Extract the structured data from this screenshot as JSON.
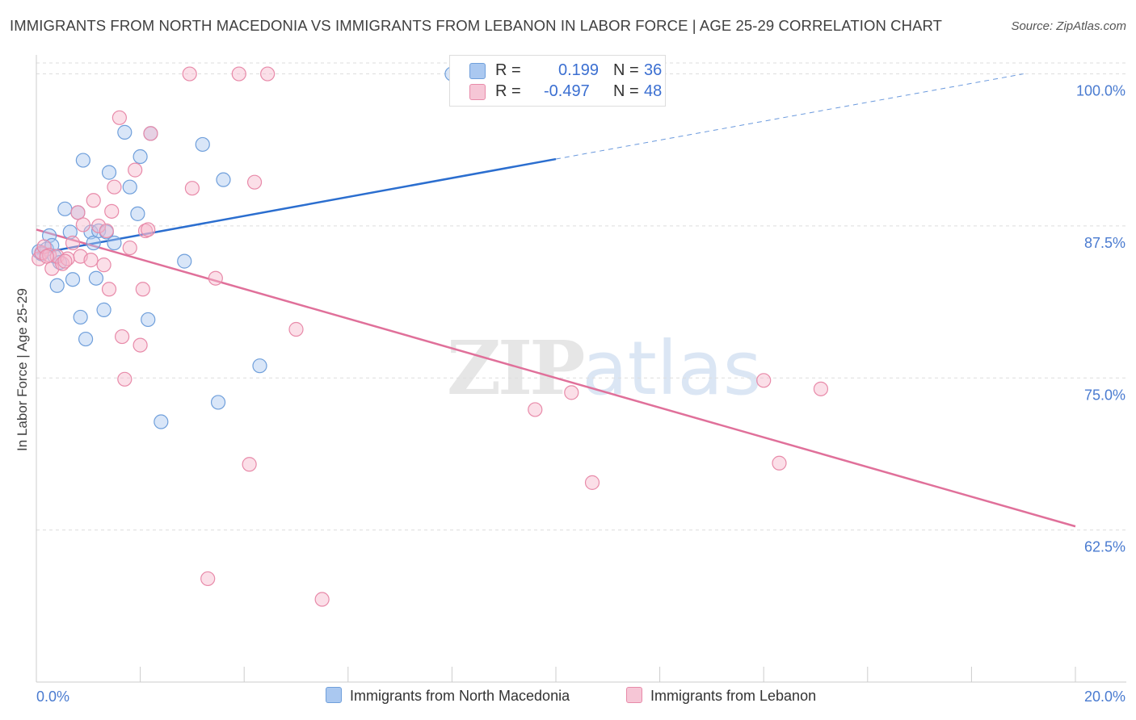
{
  "title": "IMMIGRANTS FROM NORTH MACEDONIA VS IMMIGRANTS FROM LEBANON IN LABOR FORCE | AGE 25-29 CORRELATION CHART",
  "source": "Source: ZipAtlas.com",
  "watermark": {
    "part1": "ZIP",
    "part2": "atlas"
  },
  "legend_top": {
    "rows": [
      {
        "r_label": "R =",
        "r_value": "0.199",
        "n_label": "N =",
        "n_value": "36"
      },
      {
        "r_label": "R =",
        "r_value": "-0.497",
        "n_label": "N =",
        "n_value": "48"
      }
    ]
  },
  "colors": {
    "blue_fill": "#aac8f0",
    "blue_stroke": "#6f9fdb",
    "blue_line": "#2b6ecf",
    "pink_fill": "#f6b8cc",
    "pink_stroke": "#e88aa9",
    "pink_line": "#e0709a",
    "grid": "#dddddd",
    "tick_text": "#4a7bd0"
  },
  "chart_data": {
    "type": "scatter",
    "title": "IMMIGRANTS FROM NORTH MACEDONIA VS IMMIGRANTS FROM LEBANON IN LABOR FORCE | AGE 25-29 CORRELATION CHART",
    "xlabel": "",
    "ylabel": "In Labor Force | Age 25-29",
    "xlim": [
      0,
      20
    ],
    "ylim": [
      50,
      100.9
    ],
    "x_tick_labels": [
      "0.0%",
      "20.0%"
    ],
    "y_ticks": [
      62.5,
      75.0,
      87.5,
      100.0
    ],
    "y_tick_labels": [
      "62.5%",
      "75.0%",
      "87.5%",
      "100.0%"
    ],
    "grid": true,
    "legend_placement": "bottom",
    "series": [
      {
        "name": "Immigrants from North Macedonia",
        "color": "blue",
        "points": [
          [
            0.05,
            85.4
          ],
          [
            0.2,
            85.6
          ],
          [
            0.25,
            86.7
          ],
          [
            0.3,
            85.9
          ],
          [
            0.35,
            85.0
          ],
          [
            0.4,
            82.6
          ],
          [
            0.45,
            84.5
          ],
          [
            0.55,
            88.9
          ],
          [
            0.65,
            87.0
          ],
          [
            0.7,
            83.1
          ],
          [
            0.8,
            88.6
          ],
          [
            0.85,
            80.0
          ],
          [
            0.9,
            92.9
          ],
          [
            0.95,
            78.2
          ],
          [
            1.05,
            87.0
          ],
          [
            1.1,
            86.1
          ],
          [
            1.15,
            83.2
          ],
          [
            1.2,
            87.1
          ],
          [
            1.3,
            80.6
          ],
          [
            1.35,
            87.0
          ],
          [
            1.4,
            91.9
          ],
          [
            1.5,
            86.1
          ],
          [
            1.7,
            95.2
          ],
          [
            1.8,
            90.7
          ],
          [
            1.95,
            88.5
          ],
          [
            2.0,
            93.2
          ],
          [
            2.15,
            79.8
          ],
          [
            2.2,
            95.1
          ],
          [
            2.4,
            71.4
          ],
          [
            2.85,
            84.6
          ],
          [
            3.2,
            94.2
          ],
          [
            3.5,
            73.0
          ],
          [
            3.6,
            91.3
          ],
          [
            4.3,
            76.0
          ],
          [
            8.0,
            100.0
          ],
          [
            0.1,
            85.2
          ]
        ]
      },
      {
        "name": "Immigrants from Lebanon",
        "color": "pink",
        "points": [
          [
            0.05,
            84.8
          ],
          [
            0.1,
            85.3
          ],
          [
            0.15,
            85.8
          ],
          [
            0.25,
            85.1
          ],
          [
            0.3,
            84.0
          ],
          [
            0.4,
            85.0
          ],
          [
            0.5,
            84.4
          ],
          [
            0.6,
            84.8
          ],
          [
            0.7,
            86.1
          ],
          [
            0.8,
            88.6
          ],
          [
            0.85,
            85.0
          ],
          [
            0.9,
            87.6
          ],
          [
            1.05,
            84.7
          ],
          [
            1.1,
            89.6
          ],
          [
            1.2,
            87.5
          ],
          [
            1.3,
            84.3
          ],
          [
            1.35,
            87.1
          ],
          [
            1.4,
            82.3
          ],
          [
            1.45,
            88.7
          ],
          [
            1.5,
            90.7
          ],
          [
            1.6,
            96.4
          ],
          [
            1.65,
            78.4
          ],
          [
            1.7,
            74.9
          ],
          [
            1.8,
            85.7
          ],
          [
            1.9,
            92.1
          ],
          [
            2.0,
            77.7
          ],
          [
            2.05,
            82.3
          ],
          [
            2.1,
            87.1
          ],
          [
            2.15,
            87.2
          ],
          [
            2.2,
            95.1
          ],
          [
            2.95,
            100.0
          ],
          [
            3.0,
            90.6
          ],
          [
            3.3,
            58.5
          ],
          [
            3.45,
            83.2
          ],
          [
            3.9,
            100.0
          ],
          [
            4.1,
            67.9
          ],
          [
            4.2,
            91.1
          ],
          [
            4.45,
            100.0
          ],
          [
            5.0,
            79.0
          ],
          [
            5.5,
            56.8
          ],
          [
            9.6,
            72.4
          ],
          [
            10.3,
            73.8
          ],
          [
            10.7,
            66.4
          ],
          [
            14.0,
            74.8
          ],
          [
            14.3,
            68.0
          ],
          [
            15.1,
            74.1
          ],
          [
            0.2,
            85.0
          ],
          [
            0.55,
            84.6
          ]
        ]
      }
    ],
    "trend_lines": [
      {
        "series": "Immigrants from North Macedonia",
        "solid": [
          [
            0,
            85.2
          ],
          [
            10.0,
            93.0
          ]
        ],
        "dashed": [
          [
            10.0,
            93.0
          ],
          [
            19.0,
            100.0
          ]
        ]
      },
      {
        "series": "Immigrants from Lebanon",
        "solid": [
          [
            0,
            87.2
          ],
          [
            20.0,
            62.8
          ]
        ]
      }
    ]
  }
}
